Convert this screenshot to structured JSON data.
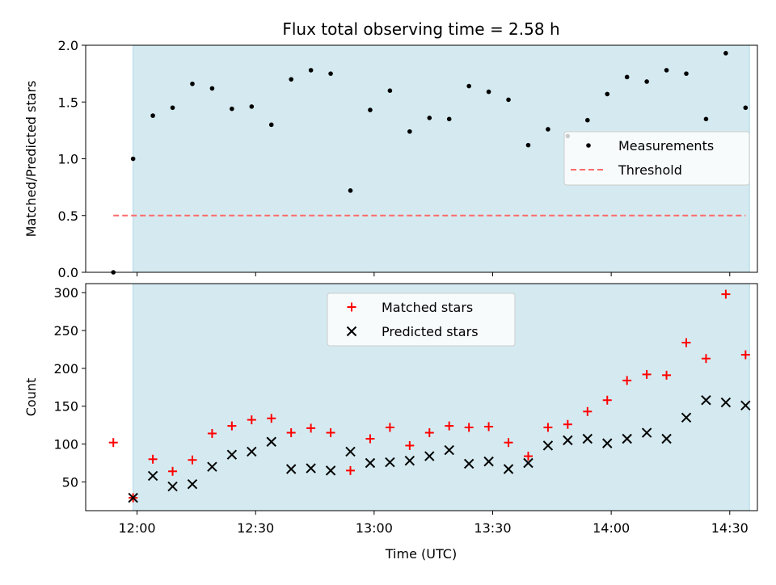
{
  "chart_data": {
    "title": "Flux total observing time = 2.58 h",
    "xlabel": "Time (UTC)",
    "x_tick_labels": [
      "12:00",
      "12:30",
      "13:00",
      "13:30",
      "14:00",
      "14:30"
    ],
    "x_ticks": [
      "12:00",
      "12:30",
      "13:00",
      "13:30",
      "14:00",
      "14:30"
    ],
    "x_range": [
      "11:47",
      "14:37"
    ],
    "observing_window": [
      "11:59",
      "14:35"
    ],
    "shade_color": "#d4eaf0",
    "panels": [
      {
        "type": "scatter",
        "ylabel": "Matched/Predicted stars",
        "ylim": [
          0,
          2.0
        ],
        "yticks": [
          0.0,
          0.5,
          1.0,
          1.5,
          2.0
        ],
        "ytick_labels": [
          "0.0",
          "0.5",
          "1.0",
          "1.5",
          "2.0"
        ],
        "legend": {
          "placement": "center-right",
          "entries": [
            "Measurements",
            "Threshold"
          ]
        },
        "series": [
          {
            "name": "Measurements",
            "marker": "dot",
            "color": "#000000",
            "x": [
              "11:54",
              "11:59",
              "12:04",
              "12:09",
              "12:14",
              "12:19",
              "12:24",
              "12:29",
              "12:34",
              "12:39",
              "12:44",
              "12:49",
              "12:54",
              "12:59",
              "13:04",
              "13:09",
              "13:14",
              "13:19",
              "13:24",
              "13:29",
              "13:34",
              "13:39",
              "13:44",
              "13:49",
              "13:54",
              "13:59",
              "14:04",
              "14:09",
              "14:14",
              "14:19",
              "14:24",
              "14:29",
              "14:34"
            ],
            "values": [
              0.0,
              1.0,
              1.38,
              1.45,
              1.66,
              1.62,
              1.44,
              1.46,
              1.3,
              1.7,
              1.78,
              1.75,
              0.72,
              1.43,
              1.6,
              1.24,
              1.36,
              1.35,
              1.64,
              1.59,
              1.52,
              1.12,
              1.26,
              1.2,
              1.34,
              1.57,
              1.72,
              1.68,
              1.78,
              1.75,
              1.35,
              1.93,
              1.45
            ]
          },
          {
            "name": "Threshold",
            "style": "dashed",
            "color": "#ff6b6b",
            "x": [
              "11:54",
              "14:34"
            ],
            "values": [
              0.5,
              0.5
            ]
          }
        ]
      },
      {
        "type": "scatter",
        "ylabel": "Count",
        "ylim": [
          12,
          312
        ],
        "yticks": [
          50,
          100,
          150,
          200,
          250,
          300
        ],
        "ytick_labels": [
          "50",
          "100",
          "150",
          "200",
          "250",
          "300"
        ],
        "legend": {
          "placement": "upper-center",
          "entries": [
            "Matched stars",
            "Predicted stars"
          ]
        },
        "series": [
          {
            "name": "Matched stars",
            "marker": "plus",
            "color": "#ff0000",
            "x": [
              "11:54",
              "11:59",
              "12:04",
              "12:09",
              "12:14",
              "12:19",
              "12:24",
              "12:29",
              "12:34",
              "12:39",
              "12:44",
              "12:49",
              "12:54",
              "12:59",
              "13:04",
              "13:09",
              "13:14",
              "13:19",
              "13:24",
              "13:29",
              "13:34",
              "13:39",
              "13:44",
              "13:49",
              "13:54",
              "13:59",
              "14:04",
              "14:09",
              "14:14",
              "14:19",
              "14:24",
              "14:29",
              "14:34"
            ],
            "values": [
              102,
              29,
              80,
              64,
              79,
              114,
              124,
              132,
              134,
              115,
              121,
              115,
              65,
              107,
              122,
              98,
              115,
              124,
              122,
              123,
              102,
              84,
              122,
              126,
              143,
              158,
              184,
              192,
              191,
              234,
              213,
              298,
              218
            ]
          },
          {
            "name": "Predicted stars",
            "marker": "x",
            "color": "#000000",
            "x": [
              "11:59",
              "12:04",
              "12:09",
              "12:14",
              "12:19",
              "12:24",
              "12:29",
              "12:34",
              "12:39",
              "12:44",
              "12:49",
              "12:54",
              "12:59",
              "13:04",
              "13:09",
              "13:14",
              "13:19",
              "13:24",
              "13:29",
              "13:34",
              "13:39",
              "13:44",
              "13:49",
              "13:54",
              "13:59",
              "14:04",
              "14:09",
              "14:14",
              "14:19",
              "14:24",
              "14:29",
              "14:34"
            ],
            "values": [
              29,
              58,
              44,
              47,
              70,
              86,
              90,
              103,
              67,
              68,
              65,
              90,
              75,
              76,
              78,
              84,
              92,
              74,
              77,
              67,
              75,
              98,
              105,
              107,
              101,
              107,
              115,
              107,
              135,
              158,
              155,
              151
            ]
          }
        ]
      }
    ]
  }
}
